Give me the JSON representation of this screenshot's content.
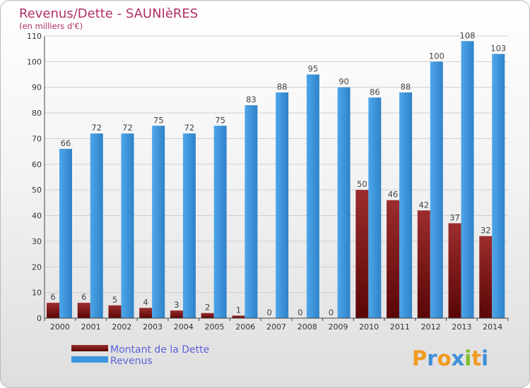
{
  "chart_data": {
    "type": "bar",
    "title": "Revenus/Dette - SAUNIèRES",
    "subtitle": "(en milliers d'€)",
    "categories": [
      "2000",
      "2001",
      "2002",
      "2003",
      "2004",
      "2005",
      "2006",
      "2007",
      "2008",
      "2009",
      "2010",
      "2011",
      "2012",
      "2013",
      "2014"
    ],
    "series": [
      {
        "name": "Montant de la Dette",
        "color": "#8b1a1a",
        "values": [
          6,
          6,
          5,
          4,
          3,
          2,
          1,
          0,
          0,
          0,
          50,
          46,
          42,
          37,
          32
        ]
      },
      {
        "name": "Revenus",
        "color": "#3f95dc",
        "values": [
          66,
          72,
          72,
          75,
          72,
          75,
          83,
          88,
          95,
          90,
          86,
          88,
          100,
          108,
          103
        ]
      }
    ],
    "ylim": [
      0,
      110
    ],
    "yticks": [
      0,
      10,
      20,
      30,
      40,
      50,
      60,
      70,
      80,
      90,
      100,
      110
    ],
    "grid": true,
    "legend": "bottom-left"
  },
  "logo": {
    "letters": [
      "P",
      "r",
      "o",
      "x",
      "i",
      "t",
      "i"
    ],
    "colors": [
      "#f29a1f",
      "#3d8fd6",
      "#f29a1f",
      "#3d8fd6",
      "#7fbf2a",
      "#f29a1f",
      "#3d8fd6"
    ]
  }
}
